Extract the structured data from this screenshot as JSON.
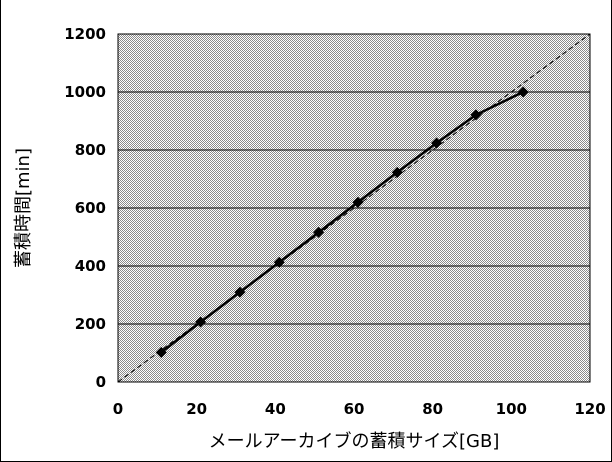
{
  "chart_data": {
    "type": "line",
    "title": "",
    "xlabel": "メールアーカイブの蓄積サイズ[GB]",
    "ylabel": "蓄積時間[min]",
    "xlim": [
      0,
      120
    ],
    "ylim": [
      0,
      1200
    ],
    "xticks": [
      "0",
      "20",
      "40",
      "60",
      "80",
      "100",
      "120"
    ],
    "yticks": [
      "0",
      "200",
      "400",
      "600",
      "800",
      "1000",
      "1200"
    ],
    "grid": "horizontal",
    "plot_background": "gray-stipple",
    "series": [
      {
        "marker": "diamond",
        "color": "#000000",
        "x": [
          11,
          21,
          31,
          41,
          51,
          61,
          71,
          81,
          91,
          103
        ],
        "y": [
          102,
          207,
          310,
          413,
          516,
          620,
          723,
          824,
          921,
          1000
        ]
      }
    ],
    "trendline": {
      "style": "dashed",
      "color": "#000000",
      "from": [
        0,
        0
      ],
      "to": [
        120,
        1200
      ]
    }
  }
}
